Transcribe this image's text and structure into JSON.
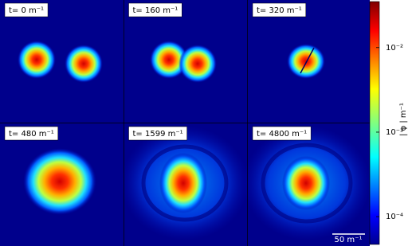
{
  "chart_data": {
    "type": "field-snapshots",
    "panels": [
      "t= 0 m⁻¹",
      "t= 160 m⁻¹",
      "t= 320 m⁻¹",
      "t= 480 m⁻¹",
      "t= 1599 m⁻¹",
      "t= 4800 m⁻¹"
    ],
    "scale_bar_label": "50 m⁻¹",
    "colorbar": {
      "label": "| φ | m⁻¹",
      "log": true,
      "lim": [
        4.7e-05,
        0.035
      ],
      "ticks": [
        {
          "value": 0.01,
          "label": "10⁻²"
        },
        {
          "value": 0.001,
          "label": "10⁻³"
        },
        {
          "value": 0.0001,
          "label": "10⁻⁴"
        }
      ]
    }
  }
}
